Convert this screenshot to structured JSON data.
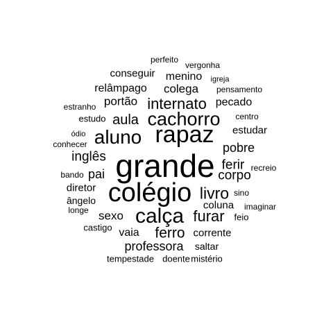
{
  "text_color": "#000000",
  "background": "#ffffff",
  "words": [
    "perfeito",
    "vergonha",
    "igreja",
    "conseguir",
    "menino",
    "pensamento",
    "relâmpago",
    "colega",
    "portão",
    "internato",
    "pecado",
    "estranho",
    "centro",
    "estudo",
    "aula",
    "cachorro",
    "estudar",
    "ódio",
    "aluno",
    "rapaz",
    "conhecer",
    "pobre",
    "inglês",
    "grande",
    "ferir",
    "recreio",
    "bando",
    "pai",
    "corpo",
    "diretor",
    "colégio",
    "livro",
    "sino",
    "ângelo",
    "coluna",
    "imaginar",
    "longe",
    "sexo",
    "calça",
    "furar",
    "feio",
    "castigo",
    "vaia",
    "ferro",
    "corrente",
    "professora",
    "saltar",
    "tempestade",
    "doente",
    "mistério"
  ]
}
